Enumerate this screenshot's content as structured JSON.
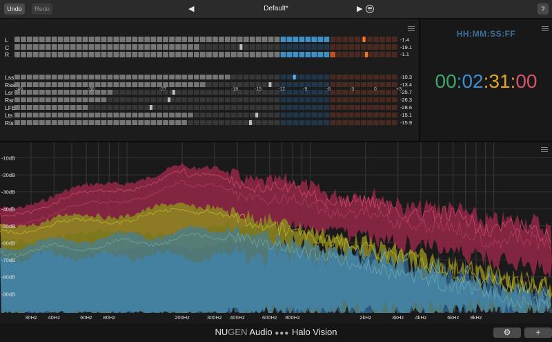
{
  "toolbar": {
    "undo_label": "Undo",
    "redo_label": "Redo",
    "preset_name": "Default*",
    "prev_icon": "◀",
    "next_icon": "▶",
    "help_label": "?"
  },
  "loudness": {
    "top_channels": [
      {
        "name": "L",
        "value": "-1.4"
      },
      {
        "name": "C",
        "value": "-19.1"
      },
      {
        "name": "R",
        "value": "-1.1"
      }
    ],
    "scale": [
      "-46",
      "-36",
      "-27",
      "-18",
      "-15",
      "-12",
      "-9",
      "-6",
      "-3",
      "0",
      "+3"
    ],
    "surround_channels": [
      {
        "name": "Lss",
        "value": "-10.3"
      },
      {
        "name": "Rss",
        "value": "-13.4"
      },
      {
        "name": "Lsr",
        "value": "-25.7"
      },
      {
        "name": "Rsr",
        "value": "-26.3"
      },
      {
        "name": "LFE",
        "value": "-28.6"
      },
      {
        "name": "Lts",
        "value": "-15.1"
      },
      {
        "name": "Rts",
        "value": "-15.9"
      }
    ]
  },
  "timecode": {
    "format": "HH:MM:SS:FF",
    "hours": "00",
    "minutes": "02",
    "seconds": "31",
    "frames": "00",
    "sep1": ":",
    "sep2": ":",
    "sep3": ":",
    "colors": {
      "hours": "#3da66b",
      "minutes": "#3b8fd0",
      "seconds": "#e0a626",
      "frames": "#d5556a"
    }
  },
  "spectrum": {
    "db_labels": [
      "-10dB",
      "-20dB",
      "-30dB",
      "-40dB",
      "-50dB",
      "-60dB",
      "-70dB",
      "-80dB",
      "-90dB"
    ],
    "freq_labels": [
      "30Hz",
      "40Hz",
      "60Hz",
      "80Hz",
      "200Hz",
      "300Hz",
      "400Hz",
      "600Hz",
      "800Hz",
      "2kHz",
      "3kHz",
      "4kHz",
      "6kHz",
      "8kHz"
    ],
    "colors": {
      "red": "#8e2746",
      "yellow": "#8f8a20",
      "teal": "#537d7b",
      "blue": "#3a89c4"
    }
  },
  "footer": {
    "brand_nu": "NU",
    "brand_gen": "GEN",
    "brand_audio": " Audio ",
    "brand_dots": "●●●",
    "product": " Halo Vision",
    "settings_icon": "⚙",
    "add_icon": "+"
  }
}
